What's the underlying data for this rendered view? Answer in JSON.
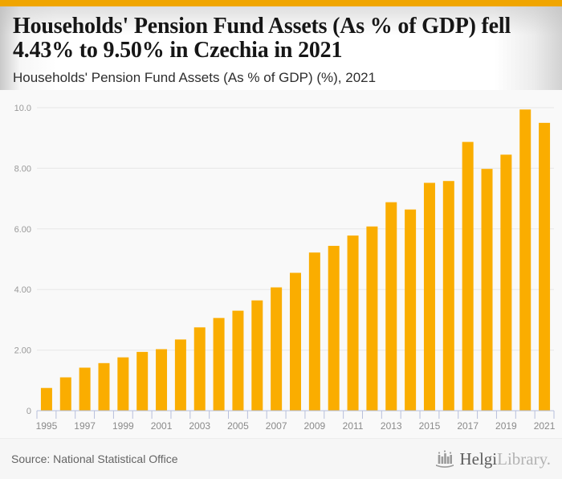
{
  "header": {
    "title_line1": "Households' Pension Fund Assets (As % of GDP) fell",
    "title_line2": "4.43% to 9.50% in Czechia in 2021",
    "subtitle": "Households' Pension Fund Assets (As % of GDP) (%), 2021"
  },
  "footer": {
    "source": "Source: National Statistical Office",
    "logo_icon": "helgi-bars-icon",
    "logo_text_bold": "Helgi",
    "logo_text_light": "Library."
  },
  "colors": {
    "topbar": "#F0A500",
    "bar": "#FAAD00",
    "grid": "#E8E8E8",
    "axis": "#B7BFDC",
    "y_label": "#999999",
    "x_label": "#8A8A8A"
  },
  "chart_data": {
    "type": "bar",
    "title": "Households' Pension Fund Assets (As % of GDP) fell 4.43% to 9.50% in Czechia in 2021",
    "subtitle": "Households' Pension Fund Assets (As % of GDP) (%), 2021",
    "xlabel": "",
    "ylabel": "",
    "ylim": [
      0,
      10.6
    ],
    "grid": true,
    "legend": false,
    "bar_color": "#FAAD00",
    "categories": [
      1995,
      1996,
      1997,
      1998,
      1999,
      2000,
      2001,
      2002,
      2003,
      2004,
      2005,
      2006,
      2007,
      2008,
      2009,
      2010,
      2011,
      2012,
      2013,
      2014,
      2015,
      2016,
      2017,
      2018,
      2019,
      2020,
      2021
    ],
    "values": [
      0.75,
      1.1,
      1.42,
      1.57,
      1.76,
      1.94,
      2.03,
      2.35,
      2.75,
      3.06,
      3.3,
      3.64,
      4.07,
      4.55,
      5.22,
      5.44,
      5.78,
      6.08,
      6.88,
      6.64,
      7.52,
      7.58,
      8.87,
      7.98,
      8.45,
      9.94,
      9.5
    ],
    "x_tick_labels": [
      "1995",
      "1997",
      "1999",
      "2001",
      "2003",
      "2005",
      "2007",
      "2009",
      "2011",
      "2013",
      "2015",
      "2017",
      "2019",
      "2021"
    ],
    "x_label_every": 2,
    "y_ticks": [
      {
        "label": "10.0",
        "value": 10
      },
      {
        "label": "8.00",
        "value": 8
      },
      {
        "label": "6.00",
        "value": 6
      },
      {
        "label": "4.00",
        "value": 4
      },
      {
        "label": "2.00",
        "value": 2
      },
      {
        "label": "0",
        "value": 0
      }
    ]
  }
}
